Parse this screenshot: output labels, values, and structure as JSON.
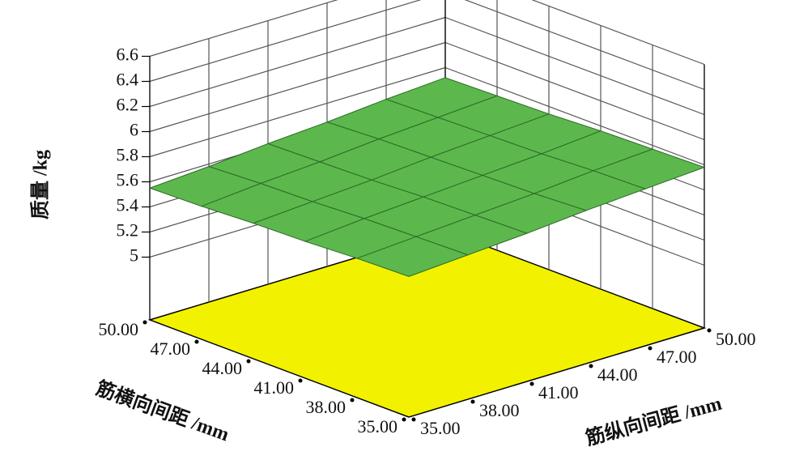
{
  "chart_data": {
    "type": "surface",
    "x_label": "筋横向间距 /mm",
    "y_label": "筋纵向间距 /mm",
    "z_label": "质量 /kg",
    "x": [
      35,
      38,
      41,
      44,
      47,
      50
    ],
    "y": [
      35,
      38,
      41,
      44,
      47,
      50
    ],
    "z": [
      [
        5.62,
        5.65,
        5.68,
        5.72,
        5.75,
        5.78
      ],
      [
        5.61,
        5.64,
        5.67,
        5.7,
        5.74,
        5.77
      ],
      [
        5.59,
        5.63,
        5.66,
        5.69,
        5.72,
        5.76
      ],
      [
        5.58,
        5.61,
        5.64,
        5.68,
        5.71,
        5.74
      ],
      [
        5.56,
        5.6,
        5.63,
        5.67,
        5.7,
        5.73
      ],
      [
        5.55,
        5.58,
        5.62,
        5.65,
        5.69,
        5.72
      ]
    ],
    "xlim": [
      35,
      50
    ],
    "ylim": [
      35,
      50
    ],
    "zlim": [
      4.5,
      6.6
    ],
    "xticks": [
      {
        "value": 35,
        "label": "35.00"
      },
      {
        "value": 38,
        "label": "38.00"
      },
      {
        "value": 41,
        "label": "41.00"
      },
      {
        "value": 44,
        "label": "44.00"
      },
      {
        "value": 47,
        "label": "47.00"
      },
      {
        "value": 50,
        "label": "50.00"
      }
    ],
    "yticks": [
      {
        "value": 35,
        "label": "35.00"
      },
      {
        "value": 38,
        "label": "38.00"
      },
      {
        "value": 41,
        "label": "41.00"
      },
      {
        "value": 44,
        "label": "44.00"
      },
      {
        "value": 47,
        "label": "47.00"
      },
      {
        "value": 50,
        "label": "50.00"
      }
    ],
    "zticks": [
      5,
      5.2,
      5.4,
      5.6,
      5.8,
      6,
      6.2,
      6.4,
      6.6
    ],
    "surface_color": "#5cb84c",
    "mesh_color": "#2d6a28",
    "floor_color": "#f2f200",
    "grid": true
  }
}
